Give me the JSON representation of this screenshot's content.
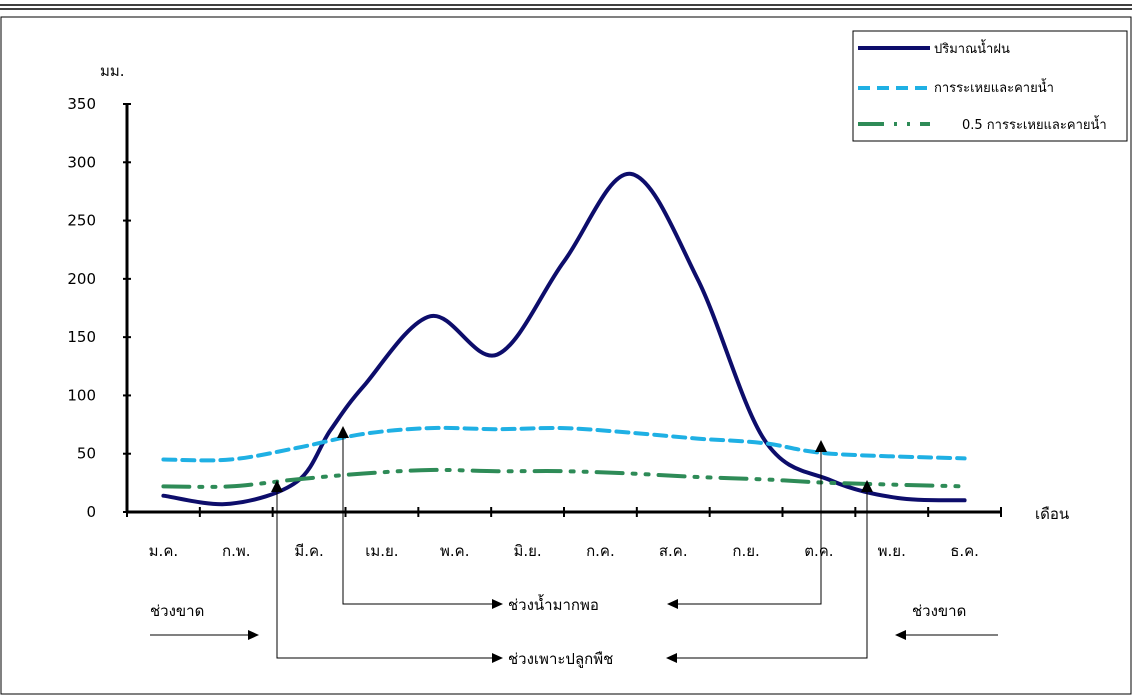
{
  "chart_data": {
    "type": "line",
    "ylabel": "มม.",
    "xlabel": "เดือน",
    "ylim": [
      0,
      350
    ],
    "yticks": [
      0,
      50,
      100,
      150,
      200,
      250,
      300,
      350
    ],
    "categories": [
      "ม.ค.",
      "ก.พ.",
      "มี.ค.",
      "เม.ย.",
      "พ.ค.",
      "มิ.ย.",
      "ก.ค.",
      "ส.ค.",
      "ก.ย.",
      "ต.ค.",
      "พ.ย.",
      "ธ.ค."
    ],
    "series": [
      {
        "name": "ปริมาณน้ำฝน",
        "color": "#0d0d6b",
        "style": "solid",
        "values": [
          14,
          7,
          26,
          70,
          108,
          168,
          135,
          215,
          290,
          200,
          62,
          27,
          12,
          10
        ],
        "x": [
          0,
          1,
          2,
          2.5,
          3,
          4,
          5,
          6,
          7,
          8,
          9,
          10,
          11,
          12
        ]
      },
      {
        "name": "การระเหยและคายน้ำ",
        "color": "#1fb0e4",
        "style": "dashed",
        "values": [
          45,
          45,
          55,
          67,
          72,
          71,
          72,
          68,
          63,
          59,
          50,
          46
        ],
        "x": [
          0,
          1,
          2,
          3,
          4,
          5,
          6,
          7,
          8,
          9,
          10,
          12
        ]
      },
      {
        "name": "0.5 การระเหยและคายน้ำ",
        "color": "#2e8b57",
        "style": "dashdot",
        "values": [
          22,
          22,
          28,
          33,
          36,
          35,
          35,
          33,
          30,
          28,
          25,
          22
        ],
        "x": [
          0,
          1,
          2,
          3,
          4,
          5,
          6,
          7,
          8,
          9,
          10,
          12
        ]
      }
    ],
    "legend": "top-right",
    "grid": false
  },
  "annotations": {
    "sufficient_period": "ช่วงน้ำมากพอ",
    "planting_period": "ช่วงเพาะปลูกพืช",
    "deficit_left": "ช่วงขาด",
    "deficit_right": "ช่วงขาด"
  }
}
